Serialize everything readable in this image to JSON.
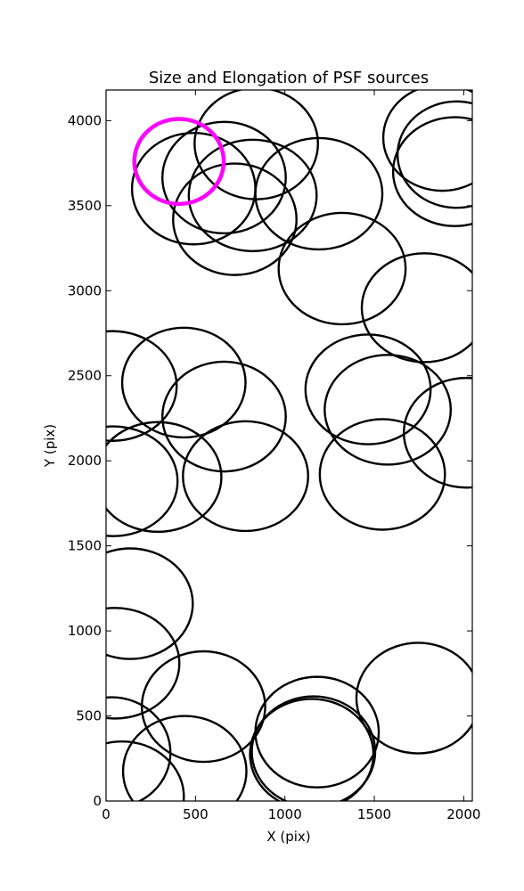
{
  "chart_data": {
    "type": "scatter",
    "marker": "ellipse",
    "title": "Size and Elongation of PSF sources",
    "xlabel": "X (pix)",
    "ylabel": "Y (pix)",
    "xlim": [
      0,
      2048
    ],
    "ylim": [
      0,
      4180
    ],
    "xticks": [
      0,
      500,
      1000,
      1500,
      2000
    ],
    "yticks": [
      0,
      500,
      1000,
      1500,
      2000,
      2500,
      3000,
      3500,
      4000
    ],
    "grid": false,
    "legend": "none",
    "colors": {
      "sources": "#000000",
      "highlight": "#ff00ff"
    },
    "sources": [
      {
        "x": 840,
        "y": 3865,
        "w": 690,
        "h": 655
      },
      {
        "x": 660,
        "y": 3665,
        "w": 690,
        "h": 655
      },
      {
        "x": 490,
        "y": 3600,
        "w": 690,
        "h": 655
      },
      {
        "x": 720,
        "y": 3420,
        "w": 690,
        "h": 655
      },
      {
        "x": 820,
        "y": 3560,
        "w": 715,
        "h": 655
      },
      {
        "x": 1190,
        "y": 3570,
        "w": 710,
        "h": 655
      },
      {
        "x": 1320,
        "y": 3130,
        "w": 710,
        "h": 655
      },
      {
        "x": 1880,
        "y": 3900,
        "w": 660,
        "h": 625
      },
      {
        "x": 1960,
        "y": 3800,
        "w": 660,
        "h": 625
      },
      {
        "x": 1950,
        "y": 3700,
        "w": 690,
        "h": 640
      },
      {
        "x": 1780,
        "y": 2900,
        "w": 700,
        "h": 640
      },
      {
        "x": 35,
        "y": 2440,
        "w": 720,
        "h": 645
      },
      {
        "x": 435,
        "y": 2460,
        "w": 690,
        "h": 645
      },
      {
        "x": 660,
        "y": 2260,
        "w": 690,
        "h": 645
      },
      {
        "x": 1465,
        "y": 2420,
        "w": 700,
        "h": 645
      },
      {
        "x": 1575,
        "y": 2300,
        "w": 705,
        "h": 645
      },
      {
        "x": 2015,
        "y": 2165,
        "w": 700,
        "h": 645
      },
      {
        "x": 40,
        "y": 1880,
        "w": 720,
        "h": 645
      },
      {
        "x": 290,
        "y": 1905,
        "w": 710,
        "h": 645
      },
      {
        "x": 780,
        "y": 1910,
        "w": 700,
        "h": 645
      },
      {
        "x": 1545,
        "y": 1920,
        "w": 700,
        "h": 650
      },
      {
        "x": 135,
        "y": 1160,
        "w": 700,
        "h": 650
      },
      {
        "x": 50,
        "y": 810,
        "w": 720,
        "h": 650
      },
      {
        "x": 545,
        "y": 555,
        "w": 690,
        "h": 650
      },
      {
        "x": 1180,
        "y": 405,
        "w": 690,
        "h": 650
      },
      {
        "x": 1745,
        "y": 605,
        "w": 690,
        "h": 650
      },
      {
        "x": 30,
        "y": 285,
        "w": 660,
        "h": 650
      },
      {
        "x": 440,
        "y": 175,
        "w": 690,
        "h": 650
      },
      {
        "x": 1160,
        "y": 290,
        "w": 690,
        "h": 650
      },
      {
        "x": 1150,
        "y": 275,
        "w": 690,
        "h": 650
      },
      {
        "x": 90,
        "y": 25,
        "w": 690,
        "h": 650
      }
    ],
    "highlight": {
      "x": 408,
      "y": 3760,
      "w": 500,
      "h": 500
    }
  }
}
